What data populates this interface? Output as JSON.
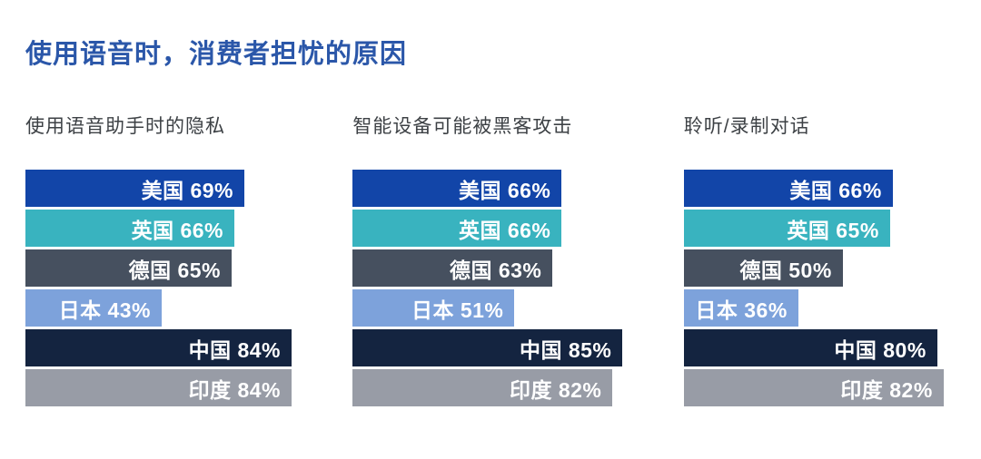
{
  "page": {
    "title": "使用语音时，消费者担忧的原因"
  },
  "colors": {
    "title_text": "#2b57a9",
    "subtitle_text": "#3d4145",
    "bar_label_text": "#ffffff",
    "background": "#ffffff"
  },
  "countries": [
    {
      "key": "usa",
      "label": "美国",
      "color": "#1245a8"
    },
    {
      "key": "uk",
      "label": "英国",
      "color": "#39b3bf"
    },
    {
      "key": "germany",
      "label": "德国",
      "color": "#46505f"
    },
    {
      "key": "japan",
      "label": "日本",
      "color": "#7da2db"
    },
    {
      "key": "china",
      "label": "中国",
      "color": "#142440"
    },
    {
      "key": "india",
      "label": "印度",
      "color": "#989ca6"
    }
  ],
  "chart_data": [
    {
      "type": "bar",
      "orientation": "horizontal",
      "title": "使用语音助手时的隐私",
      "categories": [
        "美国",
        "英国",
        "德国",
        "日本",
        "中国",
        "印度"
      ],
      "values": [
        69,
        66,
        65,
        43,
        84,
        84
      ],
      "unit": "%",
      "xlim": [
        0,
        100
      ],
      "grid": false,
      "legend": "none",
      "value_labels": "inside-right",
      "bar_colors": [
        "#1245a8",
        "#39b3bf",
        "#46505f",
        "#7da2db",
        "#142440",
        "#989ca6"
      ]
    },
    {
      "type": "bar",
      "orientation": "horizontal",
      "title": "智能设备可能被黑客攻击",
      "categories": [
        "美国",
        "英国",
        "德国",
        "日本",
        "中国",
        "印度"
      ],
      "values": [
        66,
        66,
        63,
        51,
        85,
        82
      ],
      "unit": "%",
      "xlim": [
        0,
        100
      ],
      "grid": false,
      "legend": "none",
      "value_labels": "inside-right",
      "bar_colors": [
        "#1245a8",
        "#39b3bf",
        "#46505f",
        "#7da2db",
        "#142440",
        "#989ca6"
      ]
    },
    {
      "type": "bar",
      "orientation": "horizontal",
      "title": "聆听/录制对话",
      "categories": [
        "美国",
        "英国",
        "德国",
        "日本",
        "中国",
        "印度"
      ],
      "values": [
        66,
        65,
        50,
        36,
        80,
        82
      ],
      "unit": "%",
      "xlim": [
        0,
        100
      ],
      "grid": false,
      "legend": "none",
      "value_labels": "inside-right",
      "bar_colors": [
        "#1245a8",
        "#39b3bf",
        "#46505f",
        "#7da2db",
        "#142440",
        "#989ca6"
      ]
    }
  ]
}
